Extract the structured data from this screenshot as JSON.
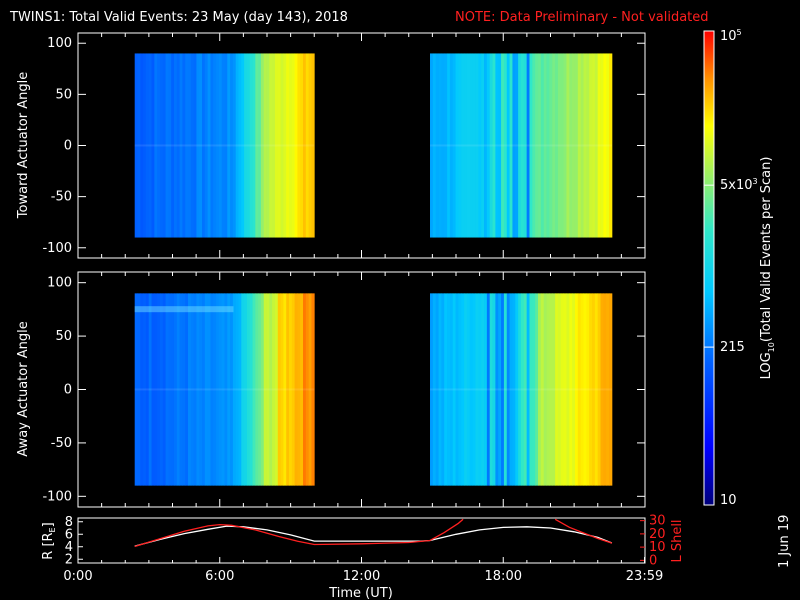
{
  "header": {
    "title": "TWINS1: Total Valid Events: 23 May (day 143), 2018",
    "note": "NOTE: Data Preliminary - Not validated"
  },
  "footer": {
    "date_stamp": "1 Jun 19"
  },
  "colors": {
    "background": "#000000",
    "axes": "#ffffff",
    "note": "#ff2020",
    "l_shell": "#ff2020"
  },
  "chart_data": [
    {
      "type": "heatmap",
      "panel": "toward",
      "ylabel": "Toward Actuator Angle",
      "ylim": [
        -110,
        110
      ],
      "yticks": [
        "100",
        "50",
        "0",
        "-50",
        "-100"
      ],
      "ytick_values": [
        100,
        50,
        0,
        -50,
        -100
      ],
      "xlim": [
        0,
        24
      ],
      "blocks": [
        {
          "t_start": 2.4,
          "t_end": 10.0,
          "angle_min": -90,
          "angle_max": 90
        },
        {
          "t_start": 14.9,
          "t_end": 22.6,
          "angle_min": -90,
          "angle_max": 90
        }
      ]
    },
    {
      "type": "heatmap",
      "panel": "away",
      "ylabel": "Away Actuator Angle",
      "ylim": [
        -110,
        110
      ],
      "yticks": [
        "100",
        "50",
        "0",
        "-50",
        "-100"
      ],
      "ytick_values": [
        100,
        50,
        0,
        -50,
        -100
      ],
      "xlim": [
        0,
        24
      ],
      "blocks": [
        {
          "t_start": 2.4,
          "t_end": 10.0,
          "angle_min": -90,
          "angle_max": 90
        },
        {
          "t_start": 14.9,
          "t_end": 22.6,
          "angle_min": -90,
          "angle_max": 90
        }
      ]
    },
    {
      "type": "line",
      "panel": "orbit",
      "xlabel": "Time (UT)",
      "xticks": [
        "0:00",
        "6:00",
        "12:00",
        "18:00",
        "23:59"
      ],
      "xtick_values": [
        0,
        6,
        12,
        18,
        23.98
      ],
      "xlim": [
        0,
        24
      ],
      "ylabel_left": "R [R",
      "ylabel_left_sub": "E",
      "ylabel_left_close": "]",
      "ylabel_right": "L Shell",
      "left_yticks": [
        "8",
        "6",
        "4",
        "2"
      ],
      "left_ytick_values": [
        8,
        6,
        4,
        2
      ],
      "left_ylim": [
        1.4,
        8.6
      ],
      "right_yticks": [
        "30",
        "20",
        "10",
        "0"
      ],
      "right_ytick_values": [
        30,
        20,
        10,
        0
      ],
      "right_ylim": [
        -2,
        32
      ],
      "series": [
        {
          "color": "#ffffff",
          "axis": "left",
          "x": [
            2.4,
            3.5,
            4.5,
            5.5,
            6.3,
            7.0,
            8.0,
            9.0,
            10.0,
            12.0,
            14.5,
            14.9,
            16.0,
            17.0,
            18.0,
            19.0,
            20.0,
            21.0,
            22.0,
            22.6
          ],
          "y": [
            4.1,
            5.2,
            6.1,
            6.8,
            7.3,
            7.2,
            6.7,
            5.9,
            4.9,
            4.9,
            4.9,
            5.0,
            6.0,
            6.7,
            7.1,
            7.2,
            7.0,
            6.4,
            5.5,
            4.6
          ]
        },
        {
          "color": "#ff2020",
          "axis": "right",
          "x": [
            2.4,
            3.5,
            4.5,
            5.5,
            6.0,
            6.5,
            7.5,
            8.5,
            9.3,
            10.0,
            12.0,
            14.0,
            14.9,
            15.5,
            16.1,
            16.3
          ],
          "y": [
            10.5,
            16.5,
            22.0,
            26.0,
            27.0,
            26.5,
            23.0,
            18.0,
            14.5,
            12.0,
            12.5,
            13.5,
            15.0,
            21.0,
            28.0,
            31.0
          ]
        },
        {
          "color": "#ff2020",
          "axis": "right",
          "x": [
            20.2,
            20.8,
            21.5,
            22.0,
            22.6
          ],
          "y": [
            31.0,
            25.0,
            20.0,
            16.5,
            13.0
          ]
        }
      ]
    }
  ],
  "colorbar": {
    "label_pre": "LOG",
    "label_sub": "10",
    "label_post": "(Total Valid Events per Scan)",
    "ticks": [
      {
        "base": "10",
        "exp": "5",
        "value": 100000
      },
      {
        "base": "5x10",
        "exp": "3",
        "value": 5000
      },
      {
        "base": "215",
        "exp": "",
        "value": 215
      },
      {
        "base": "10",
        "exp": "",
        "value": 10
      }
    ],
    "log_min": 1,
    "log_max": 5
  }
}
